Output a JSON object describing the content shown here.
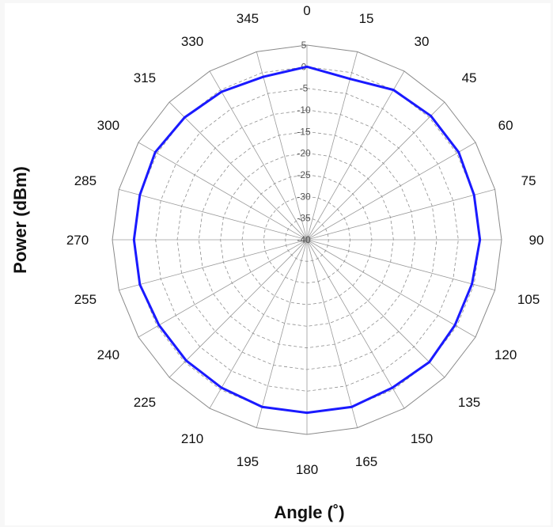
{
  "chart_data": {
    "type": "line",
    "subtype": "polar",
    "title": "",
    "xlabel": "Angle (˚)",
    "ylabel": "Power (dBm)",
    "radial_range": [
      -40,
      5
    ],
    "radial_ticks": [
      "5",
      "0",
      "-5",
      "-10",
      "-15",
      "-20",
      "-25",
      "-30",
      "-35",
      "-40"
    ],
    "radial_tick_values": [
      5,
      0,
      -5,
      -10,
      -15,
      -20,
      -25,
      -30,
      -35,
      -40
    ],
    "angle_ticks": [
      0,
      15,
      30,
      45,
      60,
      75,
      90,
      105,
      120,
      135,
      150,
      165,
      180,
      195,
      210,
      225,
      240,
      255,
      270,
      285,
      300,
      315,
      330,
      345
    ],
    "grid": true,
    "legend": "none",
    "series": [
      {
        "color": "#1a1aff",
        "x": [
          0,
          15,
          30,
          45,
          60,
          75,
          90,
          105,
          120,
          135,
          150,
          165,
          180,
          195,
          210,
          225,
          240,
          255,
          270,
          285,
          300,
          315,
          330,
          345
        ],
        "values": [
          0,
          -1.5,
          0,
          0.5,
          0.5,
          0,
          0,
          -0.5,
          -0.5,
          0,
          -0.5,
          0,
          0,
          0,
          -0.5,
          -0.5,
          -0.5,
          0,
          0,
          0,
          0.5,
          0,
          -0.5,
          -1
        ]
      }
    ]
  }
}
